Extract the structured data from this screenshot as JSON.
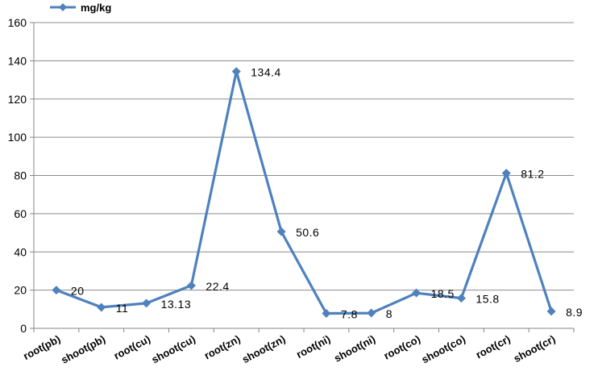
{
  "chart_data": {
    "type": "line",
    "categories": [
      "root(pb)",
      "shoot(pb)",
      "root(cu)",
      "shoot(cu)",
      "root(zn)",
      "shoot(zn)",
      "root(ni)",
      "shoot(ni)",
      "root(co)",
      "shoot(co)",
      "root(cr)",
      "shoot(cr)"
    ],
    "series": [
      {
        "name": "mg/kg",
        "values": [
          20,
          11,
          13.13,
          22.4,
          134.4,
          50.6,
          7.8,
          8,
          18.5,
          15.8,
          81.2,
          8.9
        ],
        "data_labels": [
          "20",
          "11",
          "13.13",
          "22.4",
          "134.4",
          "50.6",
          "7.8",
          "8",
          "18.5",
          "15.8",
          "81.2",
          "8.9"
        ],
        "color": "#4F81BD",
        "marker": "diamond"
      }
    ],
    "title": "",
    "xlabel": "",
    "ylabel": "",
    "ylim": [
      0,
      160
    ],
    "yticks": [
      "0",
      "20",
      "40",
      "60",
      "80",
      "100",
      "120",
      "140",
      "160"
    ],
    "grid": true,
    "legend": "top-left",
    "colors": {
      "series": "#4F81BD",
      "grid": "#8c8c8c",
      "axis": "#868686",
      "text": "#000000"
    }
  }
}
